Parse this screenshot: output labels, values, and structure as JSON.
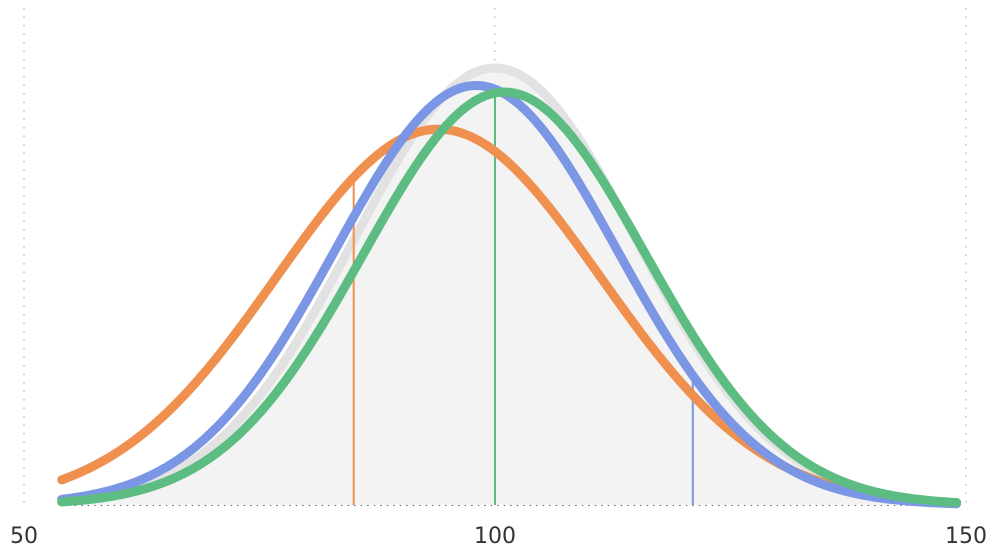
{
  "chart_data": {
    "type": "line",
    "title": "",
    "xlabel": "",
    "ylabel": "",
    "xlim": [
      50,
      150
    ],
    "x_ticks": [
      "50",
      "100",
      "150"
    ],
    "grid": {
      "vertical_dotted": [
        50,
        100,
        150
      ],
      "baseline_dotted": true
    },
    "reference_curve": {
      "mean": 100,
      "sd": 15,
      "peak": 1.0,
      "fill": "#f3f3f3",
      "stroke": "#e2e2e2"
    },
    "series": [
      {
        "mean": 94,
        "sd": 17.2,
        "peak": 0.86,
        "color": "#f0904f"
      },
      {
        "mean": 98,
        "sd": 15.0,
        "peak": 0.96,
        "color": "#7b96e4"
      },
      {
        "mean": 101,
        "sd": 15.0,
        "peak": 0.945,
        "color": "#5cbc81"
      }
    ],
    "markers": [
      {
        "x": 85,
        "color": "#f0904f"
      },
      {
        "x": 100,
        "color": "#5cbc81"
      },
      {
        "x": 121,
        "color": "#7b96e4"
      }
    ],
    "x_range_drawn": [
      54,
      149
    ]
  }
}
